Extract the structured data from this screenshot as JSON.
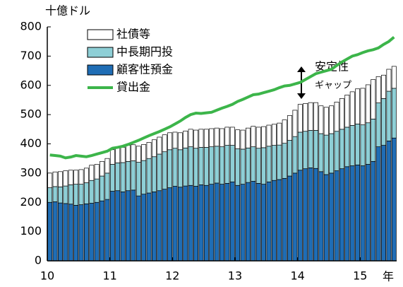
{
  "chart_data": {
    "type": "bar",
    "stacked": true,
    "unit_label": "十億ドル",
    "x_label": "年",
    "annotation": [
      "安定性",
      "ギャップ"
    ],
    "categories": [
      "10",
      null,
      null,
      null,
      null,
      null,
      null,
      null,
      null,
      null,
      null,
      null,
      "11",
      null,
      null,
      null,
      null,
      null,
      null,
      null,
      null,
      null,
      null,
      null,
      "12",
      null,
      null,
      null,
      null,
      null,
      null,
      null,
      null,
      null,
      null,
      null,
      "13",
      null,
      null,
      null,
      null,
      null,
      null,
      null,
      null,
      null,
      null,
      null,
      "14",
      null,
      null,
      null,
      null,
      null,
      null,
      null,
      null,
      null,
      null,
      null,
      "15",
      null,
      null,
      null,
      null,
      null,
      null
    ],
    "series": [
      {
        "name": "社債等",
        "color": "#ffffff",
        "values": [
          50,
          50,
          52,
          52,
          50,
          48,
          50,
          50,
          52,
          50,
          50,
          50,
          50,
          52,
          52,
          55,
          55,
          55,
          55,
          55,
          58,
          58,
          58,
          58,
          55,
          58,
          58,
          60,
          62,
          62,
          62,
          62,
          62,
          62,
          62,
          62,
          65,
          65,
          68,
          70,
          72,
          72,
          72,
          72,
          75,
          80,
          85,
          90,
          95,
          95,
          95,
          95,
          95,
          95,
          95,
          100,
          105,
          110,
          115,
          120,
          125,
          130,
          135,
          90,
          80,
          75,
          75
        ]
      },
      {
        "name": "中長期円投",
        "color": "#8ecfd6",
        "values": [
          50,
          52,
          55,
          60,
          66,
          72,
          70,
          72,
          78,
          80,
          85,
          90,
          92,
          95,
          100,
          100,
          100,
          115,
          115,
          118,
          120,
          125,
          128,
          130,
          130,
          128,
          130,
          132,
          130,
          128,
          130,
          128,
          126,
          128,
          130,
          125,
          125,
          120,
          118,
          118,
          120,
          125,
          122,
          120,
          118,
          120,
          122,
          125,
          130,
          128,
          128,
          130,
          130,
          135,
          135,
          135,
          135,
          135,
          138,
          140,
          140,
          142,
          145,
          150,
          160,
          170,
          170
        ]
      },
      {
        "name": "顧客性預金",
        "color": "#1f6db5",
        "values": [
          200,
          202,
          198,
          196,
          194,
          190,
          192,
          195,
          197,
          200,
          205,
          210,
          238,
          240,
          236,
          240,
          242,
          222,
          228,
          232,
          236,
          240,
          245,
          250,
          255,
          252,
          256,
          258,
          255,
          260,
          258,
          262,
          266,
          262,
          265,
          270,
          258,
          262,
          268,
          272,
          265,
          262,
          270,
          275,
          278,
          282,
          290,
          300,
          310,
          315,
          318,
          316,
          305,
          295,
          300,
          308,
          315,
          322,
          325,
          328,
          325,
          330,
          340,
          390,
          395,
          410,
          420
        ]
      },
      {
        "name": "貸出金",
        "color": "#3cb54a",
        "type": "line",
        "values": [
          362,
          360,
          358,
          352,
          355,
          360,
          358,
          356,
          360,
          365,
          370,
          375,
          385,
          388,
          392,
          398,
          405,
          412,
          420,
          428,
          435,
          442,
          450,
          458,
          468,
          478,
          490,
          500,
          505,
          504,
          506,
          508,
          515,
          522,
          528,
          535,
          545,
          552,
          560,
          568,
          570,
          575,
          580,
          585,
          592,
          598,
          600,
          605,
          610,
          620,
          630,
          640,
          645,
          650,
          655,
          668,
          680,
          690,
          700,
          705,
          712,
          718,
          722,
          728,
          740,
          750,
          765
        ]
      }
    ],
    "ylim": [
      0,
      800
    ],
    "yticks": [
      0,
      100,
      200,
      300,
      400,
      500,
      600,
      700,
      800
    ],
    "grid": false
  }
}
